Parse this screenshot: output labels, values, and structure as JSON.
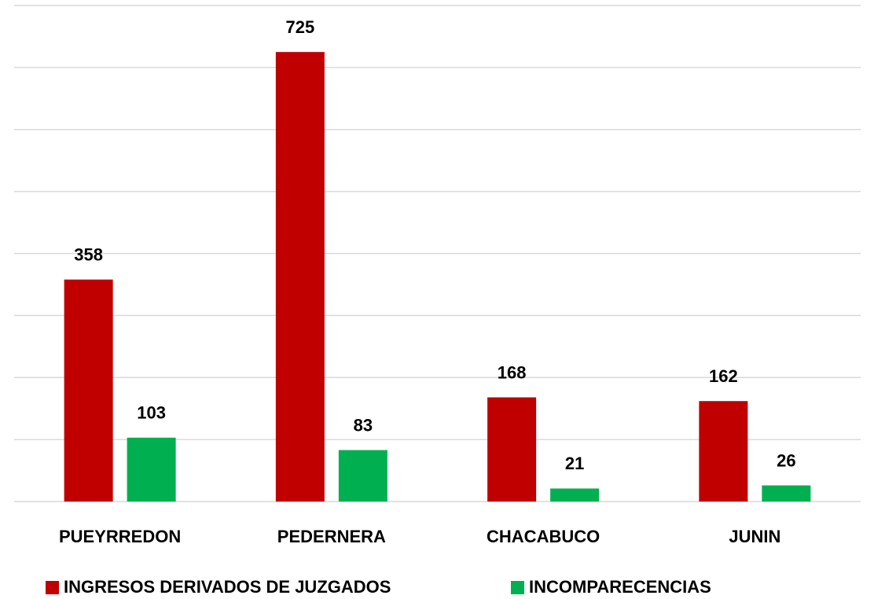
{
  "chart_data": {
    "type": "bar",
    "categories": [
      "PUEYRREDON",
      "PEDERNERA",
      "CHACABUCO",
      "JUNIN"
    ],
    "series": [
      {
        "name": "INGRESOS DERIVADOS DE JUZGADOS",
        "color": "#c00000",
        "values": [
          358,
          725,
          168,
          162
        ]
      },
      {
        "name": "INCOMPARECENCIAS",
        "color": "#00b050",
        "values": [
          103,
          83,
          21,
          26
        ]
      }
    ],
    "ylim": [
      0,
      800
    ],
    "yticks": [
      0,
      100,
      200,
      300,
      400,
      500,
      600,
      700,
      800
    ],
    "grid": true,
    "legend": "bottom"
  }
}
